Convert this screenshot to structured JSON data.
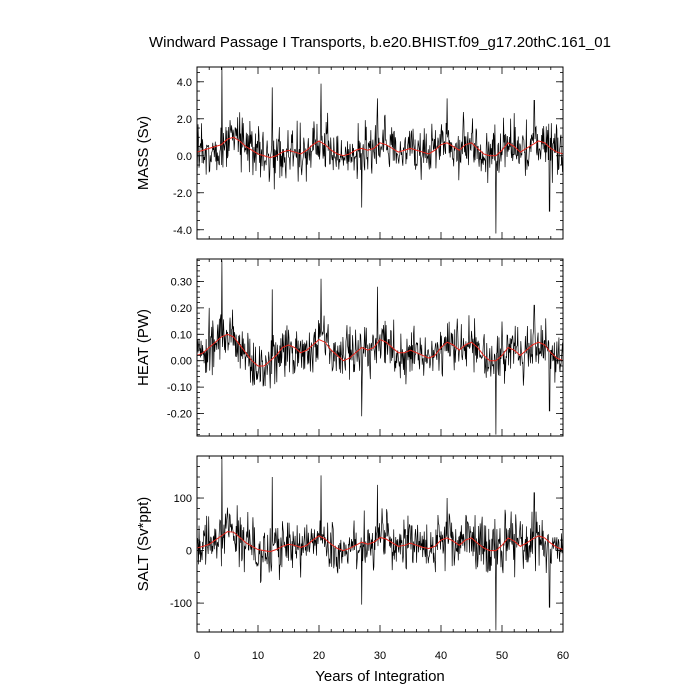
{
  "chart_data": {
    "type": "line",
    "title": "Windward Passage I Transports, b.e20.BHIST.f09_g17.20thC.161_01",
    "xlabel": "Years of Integration",
    "xlim": [
      0,
      60
    ],
    "xticks": [
      0,
      10,
      20,
      30,
      40,
      50,
      60
    ],
    "xtick_labels": [
      "0",
      "10",
      "20",
      "30",
      "40",
      "50",
      "60"
    ],
    "colors": {
      "raw": "#000000",
      "smooth": "#e8241a"
    },
    "panels": [
      {
        "ylabel": "MASS (Sv)",
        "ylim": [
          -4.5,
          4.8
        ],
        "yticks": [
          -4,
          -2,
          0,
          2,
          4
        ],
        "ytick_labels": [
          "-4.0",
          "-2.0",
          "0.0",
          "2.0",
          "4.0"
        ],
        "minor_step": 0.5,
        "smooth_values": [
          0.2,
          0.3,
          0.4,
          0.5,
          0.6,
          0.9,
          1.0,
          0.8,
          0.5,
          0.3,
          0.1,
          0.0,
          -0.1,
          0.0,
          0.2,
          0.3,
          0.2,
          0.1,
          0.3,
          0.6,
          0.8,
          0.6,
          0.3,
          0.1,
          0.0,
          0.1,
          0.3,
          0.4,
          0.3,
          0.4,
          0.7,
          0.6,
          0.4,
          0.2,
          0.3,
          0.4,
          0.3,
          0.2,
          0.1,
          0.3,
          0.6,
          0.7,
          0.5,
          0.3,
          0.6,
          0.7,
          0.4,
          0.1,
          0.0,
          0.0,
          0.3,
          0.7,
          0.5,
          0.2,
          0.4,
          0.6,
          0.8,
          0.7,
          0.4,
          0.2,
          0.1
        ],
        "spikes": [
          [
            4.1,
            4.8
          ],
          [
            12.3,
            3.7
          ],
          [
            20.3,
            3.9
          ],
          [
            29.6,
            3.1
          ],
          [
            27.0,
            -2.8
          ],
          [
            49.0,
            -4.2
          ],
          [
            57.8,
            -3.0
          ],
          [
            55.3,
            3.0
          ],
          [
            41.0,
            3.1
          ]
        ]
      },
      {
        "ylabel": "HEAT (PW)",
        "ylim": [
          -0.285,
          0.385
        ],
        "yticks": [
          -0.2,
          -0.1,
          0.0,
          0.1,
          0.2,
          0.3
        ],
        "ytick_labels": [
          "-0.20",
          "-0.10",
          "0.00",
          "0.10",
          "0.20",
          "0.30"
        ],
        "minor_step": 0.02,
        "smooth_values": [
          0.02,
          0.03,
          0.05,
          0.07,
          0.09,
          0.1,
          0.09,
          0.06,
          0.03,
          0.0,
          -0.02,
          -0.02,
          0.0,
          0.02,
          0.05,
          0.06,
          0.05,
          0.03,
          0.04,
          0.06,
          0.08,
          0.07,
          0.04,
          0.02,
          0.0,
          0.01,
          0.03,
          0.05,
          0.04,
          0.05,
          0.08,
          0.07,
          0.05,
          0.03,
          0.03,
          0.04,
          0.03,
          0.02,
          0.01,
          0.02,
          0.05,
          0.07,
          0.06,
          0.04,
          0.06,
          0.07,
          0.05,
          0.02,
          0.0,
          0.0,
          0.02,
          0.05,
          0.04,
          0.02,
          0.04,
          0.06,
          0.07,
          0.06,
          0.03,
          0.01,
          0.0
        ],
        "spikes": [
          [
            4.1,
            0.38
          ],
          [
            12.3,
            0.27
          ],
          [
            20.3,
            0.31
          ],
          [
            29.6,
            0.28
          ],
          [
            27.0,
            -0.21
          ],
          [
            49.0,
            -0.28
          ],
          [
            57.8,
            -0.19
          ],
          [
            2.0,
            0.2
          ],
          [
            55.3,
            0.21
          ]
        ]
      },
      {
        "ylabel": "SALT (Sv*ppt)",
        "ylim": [
          -155,
          180
        ],
        "yticks": [
          -100,
          0,
          100
        ],
        "ytick_labels": [
          "-100",
          "0",
          "100"
        ],
        "minor_step": 20,
        "smooth_values": [
          5,
          8,
          12,
          20,
          28,
          36,
          35,
          25,
          15,
          8,
          2,
          0,
          -2,
          2,
          8,
          12,
          10,
          6,
          10,
          20,
          28,
          22,
          12,
          4,
          0,
          4,
          10,
          16,
          12,
          16,
          25,
          22,
          15,
          8,
          10,
          14,
          10,
          6,
          4,
          8,
          20,
          24,
          18,
          10,
          20,
          24,
          14,
          5,
          0,
          0,
          10,
          24,
          18,
          8,
          14,
          22,
          28,
          24,
          14,
          6,
          2
        ],
        "spikes": [
          [
            4.1,
            178
          ],
          [
            12.3,
            140
          ],
          [
            20.3,
            143
          ],
          [
            29.6,
            125
          ],
          [
            27.0,
            -103
          ],
          [
            49.0,
            -152
          ],
          [
            57.8,
            -108
          ],
          [
            55.3,
            110
          ],
          [
            41.0,
            100
          ]
        ]
      }
    ]
  }
}
